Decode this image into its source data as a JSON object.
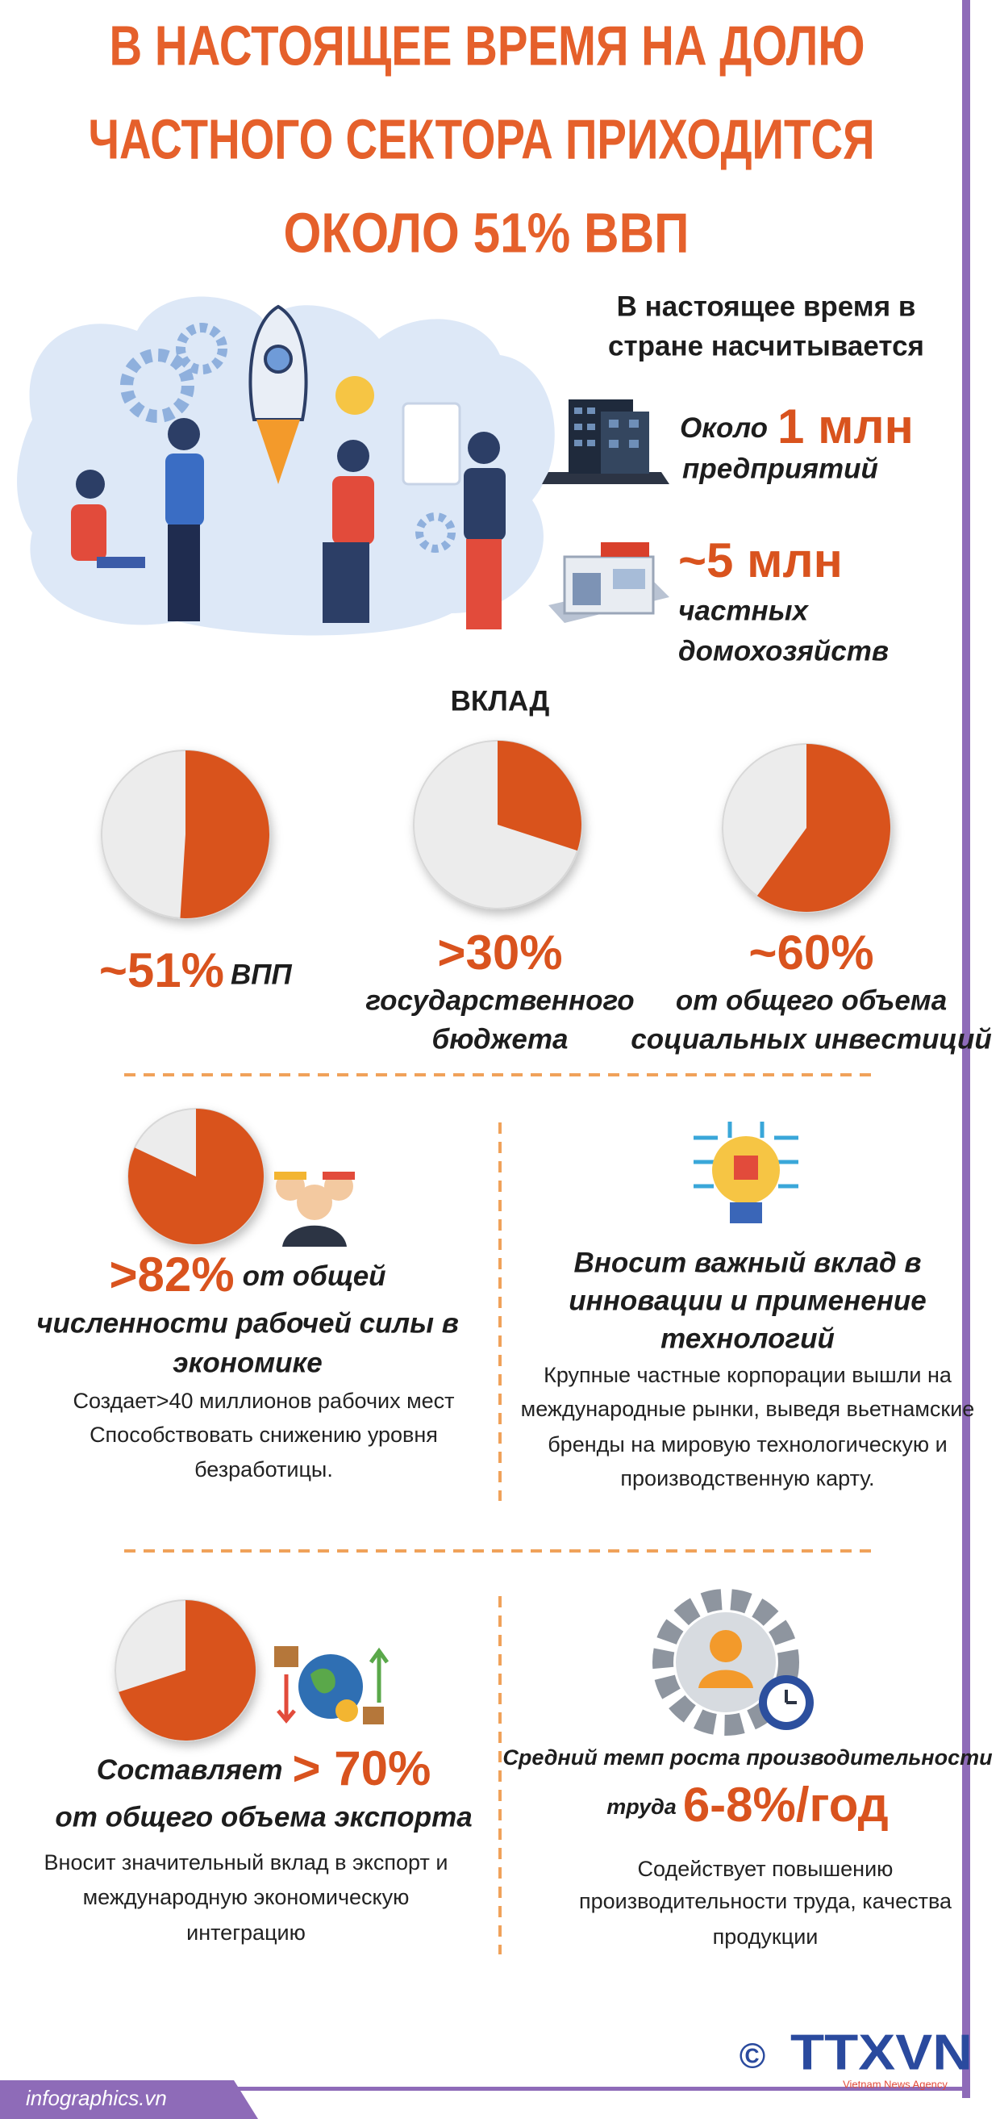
{
  "header": {
    "title": [
      "В НАСТОЯЩЕЕ ВРЕМЯ НА ДОЛЮ",
      "ЧАСТНОГО СЕКТОРА ПРИХОДИТСЯ",
      "ОКОЛО  51% ВВП"
    ]
  },
  "intro": {
    "text": [
      "В настоящее время в",
      "стране насчитывается"
    ],
    "enterprises": {
      "prefix": "Около",
      "value": "1 млн",
      "label": "предприятий"
    },
    "households": {
      "value": "~5 млн",
      "label": [
        "частных",
        "домохозяйств"
      ]
    }
  },
  "contribution": {
    "title": "ВКЛАД",
    "pies": [
      {
        "value": 51,
        "label": "~51%",
        "caption": [
          "ВПП"
        ]
      },
      {
        "value": 30,
        "label": ">30%",
        "caption": [
          "государственного",
          "бюджета"
        ]
      },
      {
        "value": 60,
        "label": "~60%",
        "caption": [
          "от общего объема",
          "социальных инвестиций"
        ]
      }
    ]
  },
  "workforce": {
    "value": 82,
    "label": ">82%",
    "suffix": "от общей",
    "title": [
      "численности рабочей силы в",
      "экономике"
    ],
    "notes": [
      "Создает>40 миллионов рабочих мест",
      "Способствовать снижению уровня",
      "безработицы."
    ]
  },
  "innovation": {
    "title": [
      "Вносит важный вклад в",
      "инновации и применение",
      "технологий"
    ],
    "notes": [
      "Крупные частные корпорации вышли на",
      "международные рынки, выведя вьетнамские",
      "бренды на мировую технологическую и",
      "производственную карту."
    ]
  },
  "export": {
    "value": 70,
    "prefix": "Составляет",
    "label": "> 70%",
    "title": "от общего объема экспорта",
    "notes": [
      "Вносит значительный вклад в экспорт и",
      "международную экономическую",
      "интеграцию"
    ]
  },
  "productivity": {
    "title": "Средний темп роста производительности",
    "prefix": "труда",
    "label": "6-8%/год",
    "notes": [
      "Содействует повышению",
      "производительности труда, качества",
      "продукции"
    ]
  },
  "footer": {
    "source": "infographics.vn",
    "copyright": "©",
    "logo": "TTXVN",
    "logo_sub": "Vietnam News Agency"
  }
}
